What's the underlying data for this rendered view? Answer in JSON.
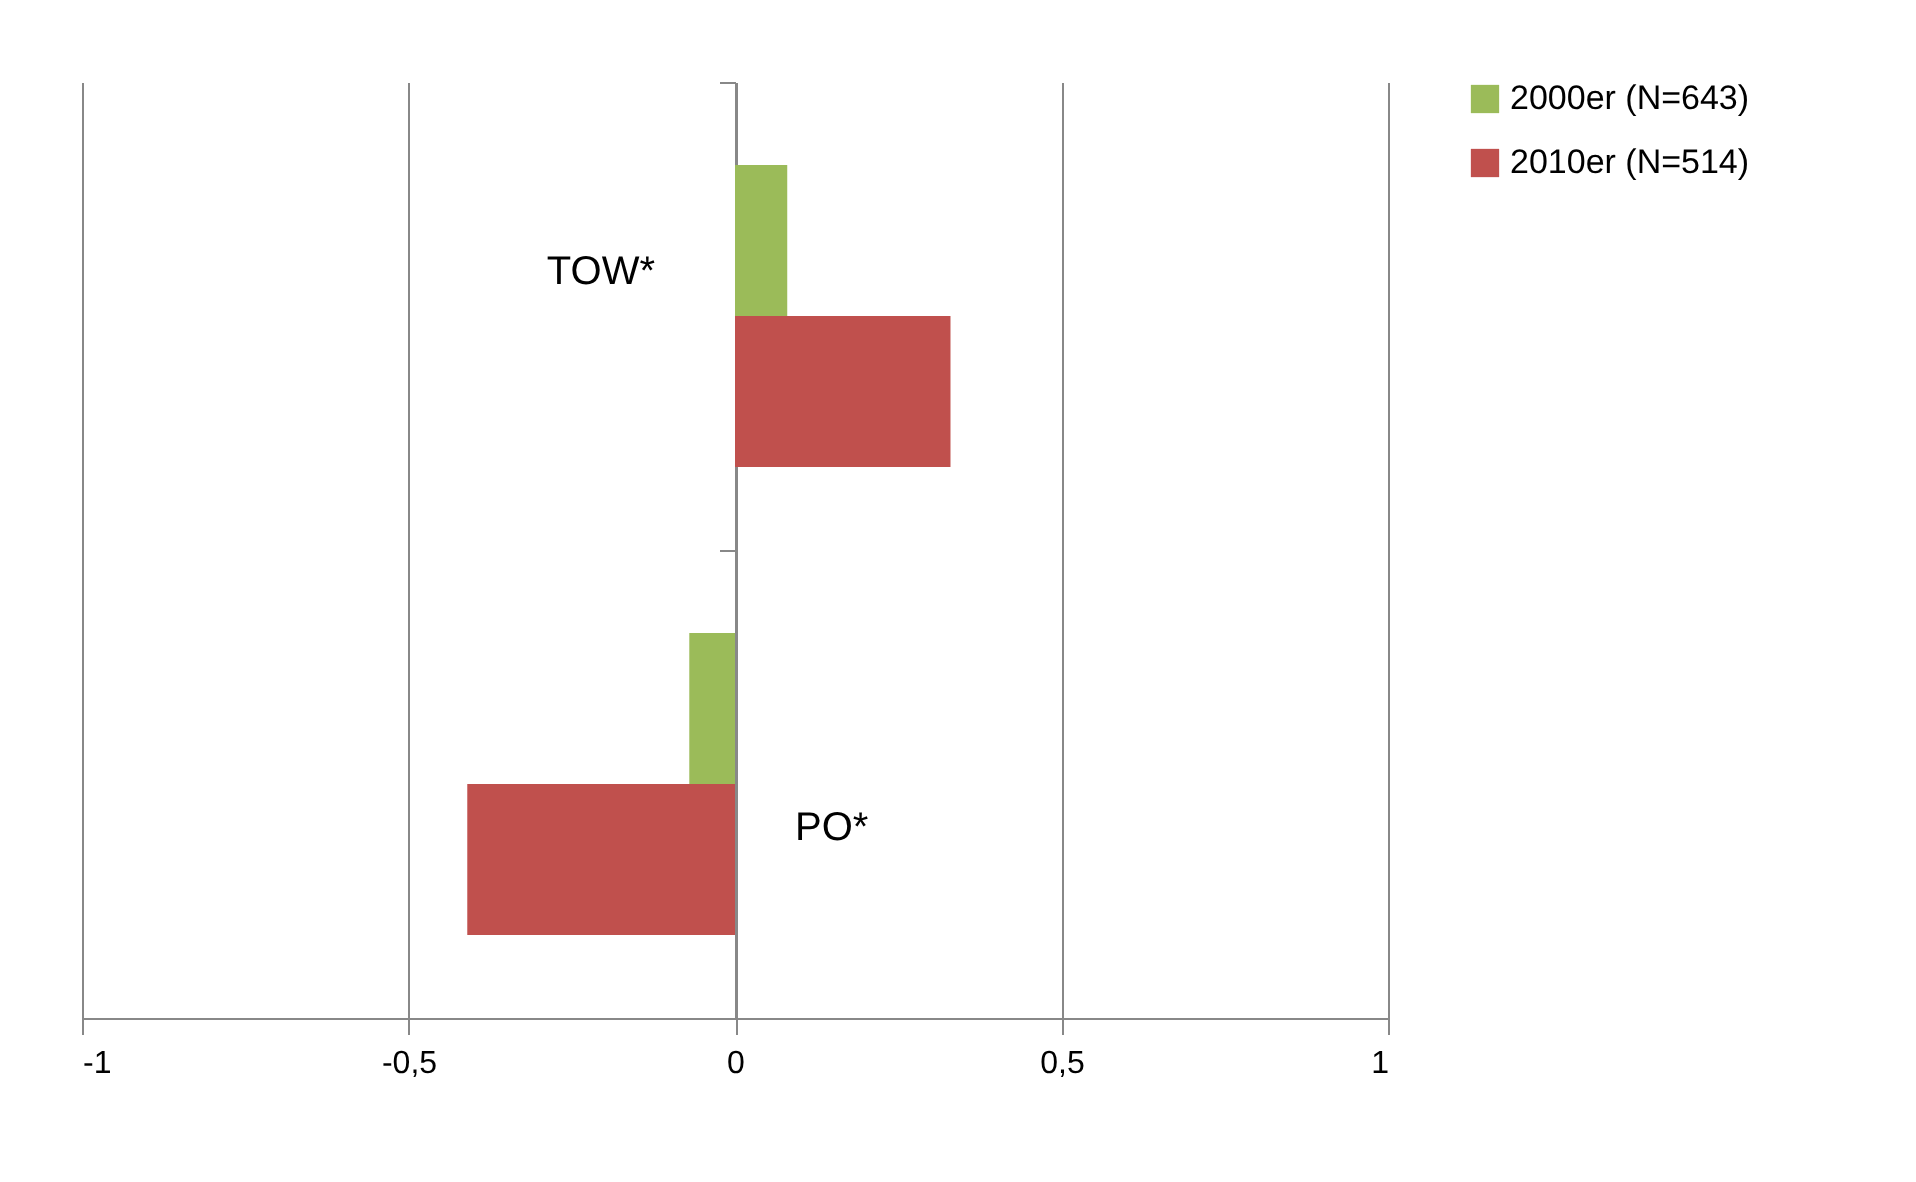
{
  "chart_data": {
    "type": "bar",
    "orientation": "horizontal",
    "categories": [
      "TOW*",
      "PO*"
    ],
    "series": [
      {
        "name": "2000er (N=643)",
        "color": "#9bbb59",
        "values": [
          0.08,
          -0.07
        ]
      },
      {
        "name": "2010er (N=514)",
        "color": "#c0504d",
        "values": [
          0.33,
          -0.41
        ]
      }
    ],
    "xlim": [
      -1,
      1
    ],
    "xticks": [
      -1,
      {
        "value": -0.5,
        "label": "-0,5"
      },
      0,
      {
        "value": 0.5,
        "label": "0,5"
      },
      1
    ],
    "grid": "x",
    "legend": "right"
  }
}
